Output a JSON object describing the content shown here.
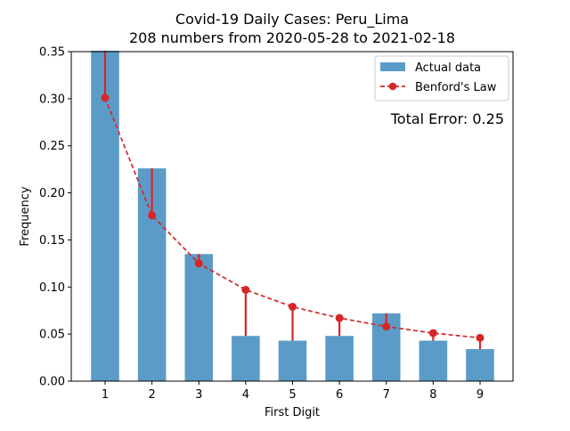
{
  "chart_data": {
    "type": "bar",
    "title": "Covid-19 Daily Cases: Peru_Lima",
    "subtitle": "208 numbers from 2020-05-28 to 2021-02-18",
    "xlabel": "First Digit",
    "ylabel": "Frequency",
    "categories": [
      "1",
      "2",
      "3",
      "4",
      "5",
      "6",
      "7",
      "8",
      "9"
    ],
    "ylim": [
      0,
      0.35
    ],
    "yticks": [
      "0.00",
      "0.05",
      "0.10",
      "0.15",
      "0.20",
      "0.25",
      "0.30",
      "0.35"
    ],
    "grid": false,
    "legend_position": "top-right",
    "series": [
      {
        "name": "Actual data",
        "type": "bar",
        "color": "#5b9bc8",
        "values": [
          0.351,
          0.226,
          0.135,
          0.048,
          0.043,
          0.048,
          0.072,
          0.043,
          0.034
        ]
      },
      {
        "name": "Benford's Law",
        "type": "line",
        "color": "#d62728",
        "style": "dashed",
        "values": [
          0.301,
          0.176,
          0.125,
          0.097,
          0.079,
          0.067,
          0.058,
          0.051,
          0.046
        ]
      }
    ],
    "annotation": "Total Error: 0.25",
    "annotation_color": "#d62728"
  }
}
